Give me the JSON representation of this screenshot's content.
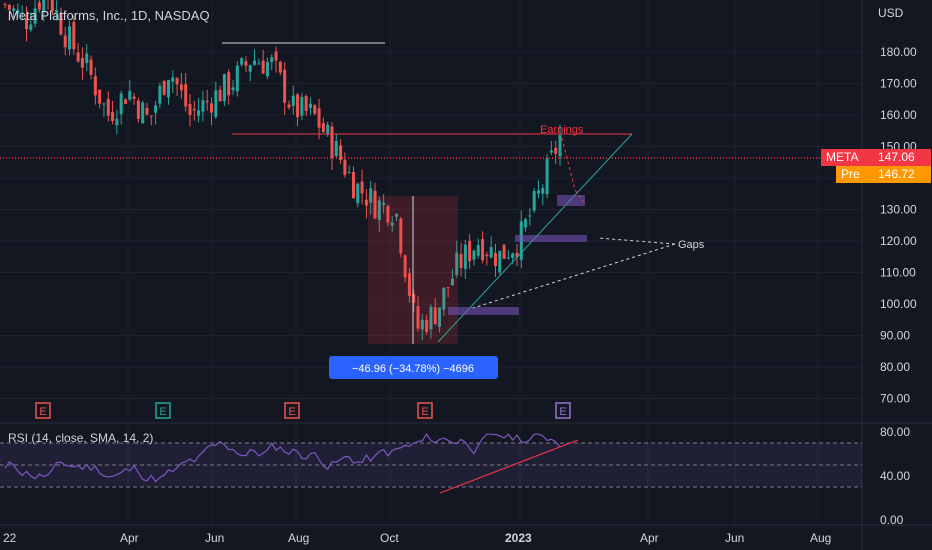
{
  "header": {
    "title": "Meta Platforms, Inc., 1D, NASDAQ",
    "currency": "USD"
  },
  "price_axis": {
    "ticks": [
      "180.00",
      "170.00",
      "160.00",
      "150.00",
      "140.00",
      "130.00",
      "120.00",
      "110.00",
      "100.00",
      "90.00",
      "80.00",
      "70.00"
    ]
  },
  "rsi_axis": {
    "ticks": [
      "80.00",
      "40.00",
      "0.00"
    ]
  },
  "time_axis": {
    "ticks": [
      "22",
      "Apr",
      "Jun",
      "Aug",
      "Oct",
      "2023",
      "Apr",
      "Jun",
      "Aug"
    ]
  },
  "badges": {
    "meta": {
      "label": "META",
      "value": "147.06",
      "color": "#f23645"
    },
    "pre": {
      "label": "Pre",
      "value": "146.72",
      "color": "#ff9800"
    }
  },
  "annotations": {
    "earnings": "Earnings",
    "gaps": "Gaps",
    "measure": "−46.96 (−34.78%) −4696"
  },
  "earnings_markers": [
    "E",
    "E",
    "E",
    "E",
    "E"
  ],
  "rsi_label": "RSI (14, close, SMA, 14, 2)",
  "colors": {
    "up": "#26a69a",
    "down": "#ef5350",
    "bg": "#131722",
    "rsi": "#7e57c2"
  },
  "chart_data": {
    "type": "candlestick",
    "title": "Meta Platforms, Inc., 1D, NASDAQ",
    "y_range": [
      65,
      195
    ],
    "price_path": [
      [
        "2022-01-20",
        195
      ],
      [
        "2022-02-10",
        190
      ],
      [
        "2022-03-01",
        200
      ],
      [
        "2022-03-15",
        185
      ],
      [
        "2022-04-01",
        175
      ],
      [
        "2022-04-15",
        160
      ],
      [
        "2022-05-01",
        168
      ],
      [
        "2022-05-15",
        158
      ],
      [
        "2022-06-01",
        175
      ],
      [
        "2022-06-15",
        160
      ],
      [
        "2022-07-01",
        165
      ],
      [
        "2022-07-20",
        170
      ],
      [
        "2022-08-01",
        178
      ],
      [
        "2022-08-10",
        176
      ],
      [
        "2022-08-25",
        162
      ],
      [
        "2022-09-10",
        160
      ],
      [
        "2022-09-20",
        150
      ],
      [
        "2022-10-01",
        138
      ],
      [
        "2022-10-15",
        132
      ],
      [
        "2022-10-26",
        130
      ],
      [
        "2022-11-03",
        92
      ],
      [
        "2022-11-10",
        98
      ],
      [
        "2022-11-15",
        112
      ],
      [
        "2022-12-01",
        120
      ],
      [
        "2022-12-15",
        115
      ],
      [
        "2023-01-01",
        120
      ],
      [
        "2023-01-15",
        135
      ],
      [
        "2023-01-31",
        153
      ]
    ],
    "current_price": 147.06,
    "premarket_price": 146.72,
    "measurement": {
      "change": -46.96,
      "change_pct": -34.78,
      "ticks": -4696
    },
    "rsi": {
      "upper": 70,
      "mid": 50,
      "lower": 30
    }
  }
}
